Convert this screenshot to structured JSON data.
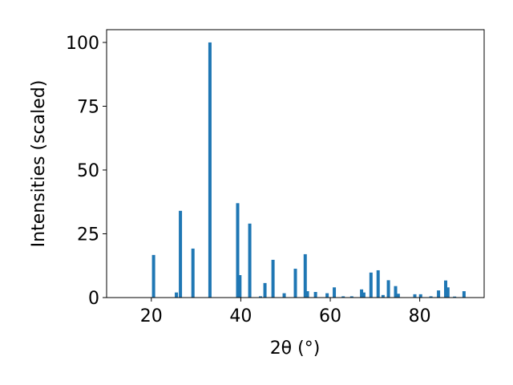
{
  "chart_data": {
    "type": "bar",
    "x_label": "2θ (°)",
    "y_label": "Intensities (scaled)",
    "x": [
      20.5,
      25.6,
      26.5,
      29.3,
      33.1,
      39.3,
      39.8,
      42.0,
      44.4,
      45.4,
      47.2,
      49.7,
      52.2,
      54.4,
      54.9,
      56.7,
      59.3,
      60.9,
      62.9,
      64.8,
      67.0,
      67.5,
      69.1,
      70.7,
      71.8,
      73.0,
      74.6,
      75.2,
      78.9,
      80.2,
      82.5,
      84.2,
      85.8,
      86.3,
      87.8,
      89.9
    ],
    "values": [
      16.7,
      2,
      34,
      19.2,
      100,
      37,
      8.8,
      29,
      0.5,
      5.7,
      14.8,
      1.7,
      11.3,
      17,
      2.5,
      2.2,
      1.7,
      4,
      0.5,
      0.5,
      3.2,
      2,
      9.8,
      10.7,
      1,
      6.8,
      4.5,
      1.5,
      1.3,
      1.3,
      0.5,
      2.8,
      6.7,
      4,
      0.4,
      2.5
    ],
    "color": "#1f77b4",
    "xlim": [
      10,
      94.4
    ],
    "xticks": [
      20,
      40,
      60,
      80
    ],
    "ylim": [
      0,
      105
    ],
    "yticks": [
      0,
      25,
      50,
      75,
      100
    ],
    "grid": false
  }
}
